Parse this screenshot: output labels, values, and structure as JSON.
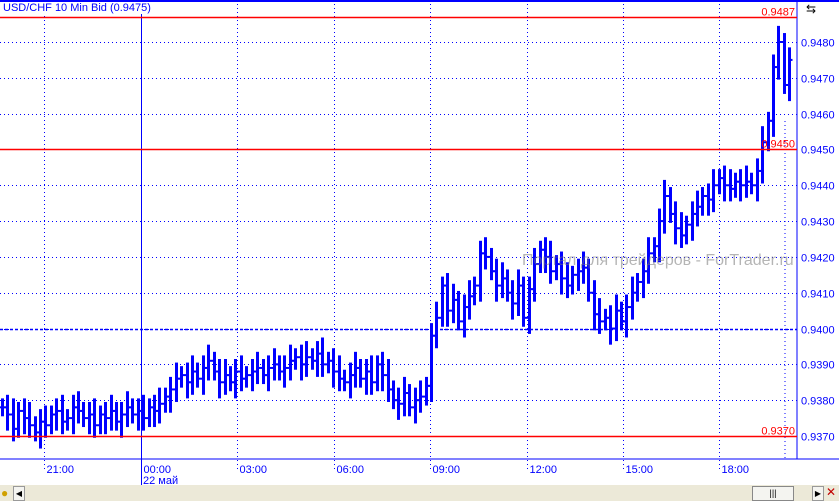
{
  "title": "USD/CHF 10 Min Bid (0.9475)",
  "watermark": "Портал для трейдеров - ForTrader.ru",
  "chart_data": {
    "type": "ohlc-bar",
    "symbol": "USD/CHF",
    "timeframe": "10 Min",
    "price_type": "Bid",
    "last_price": "0.9475",
    "ylim": [
      0.9363,
      0.949
    ],
    "y_ticks": [
      "0.9370",
      "0.9380",
      "0.9390",
      "0.9400",
      "0.9410",
      "0.9420",
      "0.9430",
      "0.9440",
      "0.9450",
      "0.9460",
      "0.9470",
      "0.9480"
    ],
    "x_ticks": [
      "21:00",
      "00:00",
      "03:00",
      "06:00",
      "09:00",
      "12:00",
      "15:00",
      "18:00"
    ],
    "date_label": "22 май",
    "grid": true,
    "horizontal_lines": [
      {
        "price": "0.9487",
        "color": "#ff0000",
        "style": "solid"
      },
      {
        "price": "0.9450",
        "color": "#ff0000",
        "style": "solid"
      },
      {
        "price": "0.9370",
        "color": "#ff0000",
        "style": "solid"
      },
      {
        "price": "0.9400",
        "color": "#0000ff",
        "style": "dashed"
      }
    ],
    "bar_color": "#0000ff",
    "closes": [
      0.9378,
      0.9376,
      0.9372,
      0.9377,
      0.9375,
      0.9373,
      0.9371,
      0.9374,
      0.9373,
      0.9376,
      0.9377,
      0.9374,
      0.9375,
      0.9378,
      0.9377,
      0.9375,
      0.9376,
      0.9373,
      0.9376,
      0.9375,
      0.9377,
      0.9374,
      0.9376,
      0.9378,
      0.9376,
      0.9377,
      0.9375,
      0.9378,
      0.9377,
      0.9379,
      0.9381,
      0.9383,
      0.9386,
      0.9387,
      0.9385,
      0.9388,
      0.9386,
      0.9389,
      0.9391,
      0.9388,
      0.9385,
      0.9387,
      0.9385,
      0.9388,
      0.9386,
      0.9387,
      0.9388,
      0.9389,
      0.9387,
      0.9389,
      0.939,
      0.9388,
      0.9389,
      0.9391,
      0.9392,
      0.939,
      0.9392,
      0.9391,
      0.9393,
      0.939,
      0.9391,
      0.9388,
      0.9386,
      0.9385,
      0.9387,
      0.9389,
      0.9386,
      0.9388,
      0.9385,
      0.939,
      0.9387,
      0.9383,
      0.938,
      0.9379,
      0.9382,
      0.9378,
      0.938,
      0.9381,
      0.9384,
      0.9398,
      0.9403,
      0.9412,
      0.9405,
      0.9408,
      0.9402,
      0.9406,
      0.9409,
      0.9412,
      0.9421,
      0.942,
      0.9416,
      0.9412,
      0.9414,
      0.941,
      0.9407,
      0.9412,
      0.9403,
      0.9411,
      0.9418,
      0.9422,
      0.942,
      0.9416,
      0.9418,
      0.9414,
      0.9412,
      0.9415,
      0.9416,
      0.9417,
      0.941,
      0.9404,
      0.9402,
      0.9403,
      0.94,
      0.9405,
      0.9402,
      0.9406,
      0.941,
      0.9413,
      0.9416,
      0.9421,
      0.9423,
      0.943,
      0.9437,
      0.9432,
      0.9428,
      0.9426,
      0.9429,
      0.9432,
      0.9434,
      0.9437,
      0.9436,
      0.944,
      0.9442,
      0.944,
      0.9439,
      0.9441,
      0.944,
      0.9441,
      0.944,
      0.9444,
      0.9452,
      0.9458,
      0.9473,
      0.948,
      0.9468,
      0.9475
    ]
  },
  "colors": {
    "price_axis": "#0000ff",
    "level_line": "#ff0000",
    "grid": "#0000ff"
  }
}
